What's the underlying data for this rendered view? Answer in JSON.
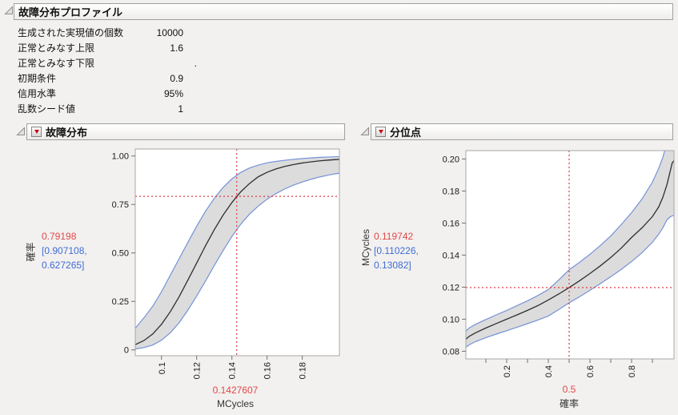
{
  "app": {
    "background": "#f2f1ef"
  },
  "profiler": {
    "title": "故障分布プロファイル",
    "params": [
      {
        "label": "生成された実現値の個数",
        "value": "10000"
      },
      {
        "label": "正常とみなす上限",
        "value": "1.6"
      },
      {
        "label": "正常とみなす下限",
        "value": "."
      },
      {
        "label": "初期条件",
        "value": "0.9"
      },
      {
        "label": "信用水準",
        "value": "95%"
      },
      {
        "label": "乱数シード値",
        "value": "1"
      }
    ]
  },
  "colors": {
    "band_fill": "#dcdcdc",
    "band_edge": "#7592d9",
    "estimate_line": "#2e2e2e",
    "crosshair": "#d42a33",
    "current_value_text": "#e04848",
    "ci_text": "#3f6cd6",
    "plot_border": "#a8a8a8",
    "menu_button_glyph": "#c11010"
  },
  "chart_data": [
    {
      "type": "line",
      "title": "故障分布",
      "xlabel": "MCycles",
      "ylabel": "確率",
      "xlim": [
        0.0851,
        0.2011
      ],
      "ylim": [
        -0.03,
        1.036
      ],
      "x_ticks": [
        0.1,
        0.12,
        0.14,
        0.16,
        0.18
      ],
      "x_tick_labels": [
        "0.1",
        "0.12",
        "0.14",
        "0.16",
        "0.18"
      ],
      "x_minor_ticks": [],
      "y_ticks": [
        0,
        0.25,
        0.5,
        0.75,
        1.0
      ],
      "y_tick_labels": [
        "0",
        "0.25",
        "0.50",
        "0.75",
        "1.00"
      ],
      "grid": false,
      "legend": false,
      "x": [
        0.0851,
        0.09,
        0.095,
        0.1,
        0.105,
        0.11,
        0.115,
        0.12,
        0.125,
        0.13,
        0.135,
        0.14,
        0.145,
        0.15,
        0.155,
        0.16,
        0.165,
        0.17,
        0.175,
        0.18,
        0.185,
        0.19,
        0.195,
        0.2,
        0.2011
      ],
      "series": [
        {
          "name": "estimate",
          "values": [
            0.027,
            0.048,
            0.082,
            0.132,
            0.197,
            0.274,
            0.36,
            0.448,
            0.537,
            0.62,
            0.695,
            0.76,
            0.815,
            0.858,
            0.893,
            0.916,
            0.933,
            0.946,
            0.956,
            0.964,
            0.97,
            0.975,
            0.979,
            0.982,
            0.983
          ]
        },
        {
          "name": "upper-95ci",
          "values": [
            0.112,
            0.165,
            0.225,
            0.3,
            0.385,
            0.47,
            0.555,
            0.638,
            0.715,
            0.782,
            0.838,
            0.882,
            0.915,
            0.938,
            0.953,
            0.965,
            0.972,
            0.978,
            0.983,
            0.987,
            0.99,
            0.993,
            0.995,
            0.9965,
            0.997
          ]
        },
        {
          "name": "lower-95ci",
          "values": [
            0.005,
            0.012,
            0.025,
            0.05,
            0.088,
            0.14,
            0.205,
            0.278,
            0.355,
            0.435,
            0.512,
            0.585,
            0.648,
            0.7,
            0.742,
            0.777,
            0.806,
            0.83,
            0.85,
            0.866,
            0.88,
            0.892,
            0.902,
            0.91,
            0.911
          ]
        }
      ],
      "crosshair": {
        "x": 0.1427607,
        "y": 0.79198
      },
      "current": {
        "y_value": "0.79198",
        "ci_line1": "[0.907108,",
        "ci_line2": "0.627265]",
        "x_value": "0.1427607"
      }
    },
    {
      "type": "line",
      "title": "分位点",
      "xlabel": "確率",
      "ylabel": "MCycles",
      "xlim": [
        0.0038,
        1.0038
      ],
      "ylim": [
        0.0752,
        0.2052
      ],
      "x_ticks": [
        0.2,
        0.4,
        0.6,
        0.8
      ],
      "x_tick_labels": [
        "0.2",
        "0.4",
        "0.6",
        "0.8"
      ],
      "x_minor_ticks": [
        0.1,
        0.3,
        0.5,
        0.7,
        0.9
      ],
      "y_ticks": [
        0.08,
        0.1,
        0.12,
        0.14,
        0.16,
        0.18,
        0.2
      ],
      "y_tick_labels": [
        "0.08",
        "0.10",
        "0.12",
        "0.14",
        "0.16",
        "0.18",
        "0.20"
      ],
      "grid": false,
      "legend": false,
      "x": [
        0.0038,
        0.02,
        0.05,
        0.1,
        0.15,
        0.2,
        0.25,
        0.3,
        0.35,
        0.4,
        0.45,
        0.5,
        0.55,
        0.6,
        0.65,
        0.7,
        0.75,
        0.8,
        0.85,
        0.9,
        0.93,
        0.95,
        0.97,
        0.985,
        0.995,
        1.0038
      ],
      "series": [
        {
          "name": "estimate",
          "values": [
            0.0875,
            0.0893,
            0.0915,
            0.0945,
            0.0973,
            0.1,
            0.1027,
            0.1055,
            0.1085,
            0.112,
            0.1157,
            0.119742,
            0.124,
            0.1285,
            0.1333,
            0.1385,
            0.1443,
            0.151,
            0.157,
            0.164,
            0.17,
            0.176,
            0.184,
            0.192,
            0.1975,
            0.199
          ]
        },
        {
          "name": "upper-95ci",
          "values": [
            0.0925,
            0.0945,
            0.0968,
            0.0998,
            0.1027,
            0.1055,
            0.1085,
            0.1115,
            0.1148,
            0.1185,
            0.1245,
            0.13082,
            0.1355,
            0.1405,
            0.146,
            0.152,
            0.159,
            0.1665,
            0.175,
            0.1855,
            0.194,
            0.201,
            0.21,
            0.218,
            0.223,
            0.225
          ]
        },
        {
          "name": "lower-95ci",
          "values": [
            0.0825,
            0.084,
            0.086,
            0.0885,
            0.0907,
            0.0928,
            0.095,
            0.0972,
            0.0995,
            0.102,
            0.106,
            0.110226,
            0.114,
            0.118,
            0.1222,
            0.1265,
            0.131,
            0.136,
            0.1415,
            0.148,
            0.153,
            0.157,
            0.162,
            0.1638,
            0.1645,
            0.1646
          ]
        }
      ],
      "crosshair": {
        "x": 0.5,
        "y": 0.119742
      },
      "current": {
        "y_value": "0.119742",
        "ci_line1": "[0.110226,",
        "ci_line2": "0.13082]",
        "x_value": "0.5"
      }
    }
  ]
}
